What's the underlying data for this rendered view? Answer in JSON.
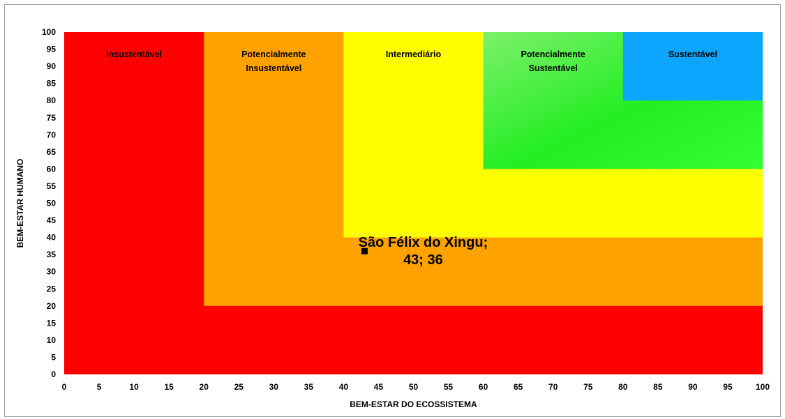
{
  "chart_data": {
    "type": "scatter",
    "xlabel": "BEM-ESTAR DO ECOSSISTEMA",
    "ylabel": "BEM-ESTAR HUMANO",
    "xlim": [
      0,
      100
    ],
    "ylim": [
      0,
      100
    ],
    "x_ticks": [
      0,
      5,
      10,
      15,
      20,
      25,
      30,
      35,
      40,
      45,
      50,
      55,
      60,
      65,
      70,
      75,
      80,
      85,
      90,
      95,
      100
    ],
    "y_ticks": [
      0,
      5,
      10,
      15,
      20,
      25,
      30,
      35,
      40,
      45,
      50,
      55,
      60,
      65,
      70,
      75,
      80,
      85,
      90,
      95,
      100
    ],
    "grid": false,
    "zones": [
      {
        "label": [
          "Insustentável"
        ],
        "min": 0,
        "color": "#ff0000"
      },
      {
        "label": [
          "Potencialmente",
          "Insustentável"
        ],
        "min": 20,
        "color": "#ffa200"
      },
      {
        "label": [
          "Intermediário"
        ],
        "min": 40,
        "color": "#ffff00"
      },
      {
        "label": [
          "Potencialmente",
          "Sustentável"
        ],
        "min": 60,
        "color": "#33ff33"
      },
      {
        "label": [
          "Sustentável"
        ],
        "min": 80,
        "color": "#0ea5ff"
      }
    ],
    "points": [
      {
        "label": [
          "São Félix do Xingu;",
          "43; 36"
        ],
        "x": 43,
        "y": 36,
        "color": "#000000"
      }
    ]
  }
}
